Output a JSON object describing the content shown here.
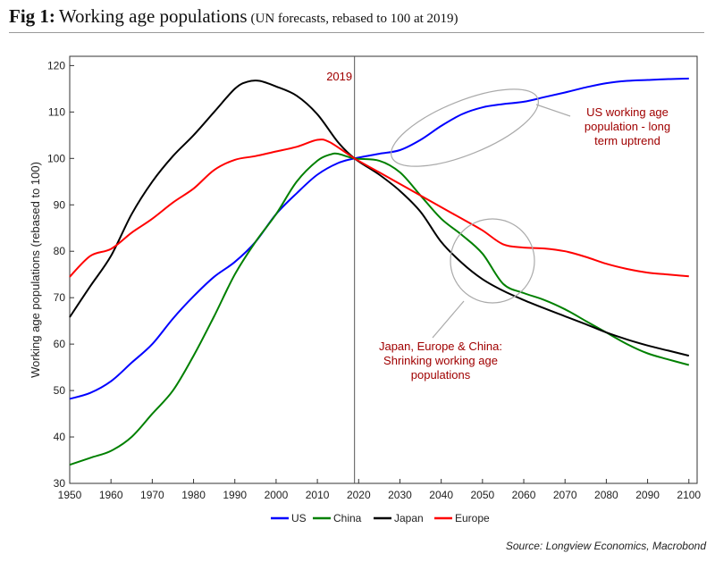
{
  "header": {
    "title_bold": "Fig 1:",
    "title_main": "Working age populations",
    "title_sub": "(UN forecasts, rebased to 100 at 2019)"
  },
  "source": "Source: Longview Economics, Macrobond",
  "chart_data": {
    "type": "line",
    "ylabel": "Working age populations (rebased to 100)",
    "xlim": [
      1950,
      2102
    ],
    "ylim": [
      30,
      122
    ],
    "x_ticks": [
      1950,
      1960,
      1970,
      1980,
      1990,
      2000,
      2010,
      2020,
      2030,
      2040,
      2050,
      2060,
      2070,
      2080,
      2090,
      2100
    ],
    "y_ticks": [
      30,
      40,
      50,
      60,
      70,
      80,
      90,
      100,
      110,
      120
    ],
    "grid": false,
    "legend_position": "bottom",
    "vline": {
      "x": 2019,
      "label": "2019"
    },
    "series": [
      {
        "name": "US",
        "color": "#0000ff",
        "x": [
          1950,
          1955,
          1960,
          1965,
          1970,
          1975,
          1980,
          1985,
          1990,
          1995,
          2000,
          2005,
          2010,
          2015,
          2019,
          2025,
          2030,
          2035,
          2040,
          2045,
          2050,
          2055,
          2060,
          2065,
          2070,
          2075,
          2080,
          2085,
          2090,
          2095,
          2100
        ],
        "values": [
          48.2,
          49.5,
          52.0,
          56.0,
          60.0,
          65.5,
          70.3,
          74.5,
          77.7,
          82.0,
          88.0,
          92.5,
          96.5,
          99.0,
          100.0,
          101.0,
          101.8,
          104.0,
          107.0,
          109.5,
          111.0,
          111.7,
          112.2,
          113.2,
          114.2,
          115.3,
          116.2,
          116.7,
          116.9,
          117.1,
          117.2
        ]
      },
      {
        "name": "China",
        "color": "#008000",
        "x": [
          1950,
          1955,
          1960,
          1965,
          1970,
          1975,
          1980,
          1985,
          1990,
          1995,
          2000,
          2005,
          2010,
          2013,
          2015,
          2019,
          2025,
          2030,
          2035,
          2040,
          2045,
          2050,
          2055,
          2060,
          2065,
          2070,
          2075,
          2080,
          2085,
          2090,
          2095,
          2100
        ],
        "values": [
          34.0,
          35.5,
          37.0,
          40.0,
          45.0,
          50.0,
          57.5,
          66.0,
          75.0,
          82.0,
          88.0,
          95.0,
          99.5,
          100.8,
          101.0,
          100.0,
          99.5,
          97.0,
          92.0,
          87.0,
          83.5,
          79.5,
          73.0,
          71.0,
          69.5,
          67.5,
          65.0,
          62.5,
          60.0,
          58.0,
          56.7,
          55.5
        ]
      },
      {
        "name": "Japan",
        "color": "#000000",
        "x": [
          1950,
          1955,
          1960,
          1965,
          1970,
          1975,
          1980,
          1985,
          1990,
          1993,
          1996,
          2000,
          2005,
          2010,
          2015,
          2019,
          2025,
          2030,
          2035,
          2040,
          2045,
          2050,
          2055,
          2060,
          2065,
          2070,
          2075,
          2080,
          2085,
          2090,
          2095,
          2100
        ],
        "values": [
          65.8,
          72.5,
          79.0,
          88.0,
          95.0,
          100.5,
          105.0,
          110.0,
          115.0,
          116.5,
          116.7,
          115.5,
          113.5,
          109.5,
          103.5,
          100.0,
          96.5,
          93.0,
          88.5,
          82.0,
          77.5,
          74.0,
          71.5,
          69.5,
          67.7,
          66.0,
          64.3,
          62.5,
          61.0,
          59.7,
          58.6,
          57.5
        ]
      },
      {
        "name": "Europe",
        "color": "#ff0000",
        "x": [
          1950,
          1955,
          1960,
          1965,
          1970,
          1975,
          1980,
          1985,
          1990,
          1995,
          2000,
          2005,
          2010,
          2013,
          2019,
          2025,
          2030,
          2035,
          2040,
          2045,
          2050,
          2055,
          2060,
          2065,
          2070,
          2075,
          2080,
          2085,
          2090,
          2095,
          2100
        ],
        "values": [
          74.5,
          79.0,
          80.5,
          84.0,
          87.0,
          90.5,
          93.5,
          97.5,
          99.7,
          100.5,
          101.5,
          102.5,
          104.0,
          103.5,
          100.0,
          97.0,
          94.5,
          92.0,
          89.5,
          87.0,
          84.5,
          81.5,
          80.8,
          80.6,
          80.0,
          78.8,
          77.3,
          76.2,
          75.4,
          75.0,
          74.6
        ]
      }
    ],
    "annotations": [
      {
        "lines": [
          "US working age",
          "population - long",
          "term uptrend"
        ]
      },
      {
        "lines": [
          "Japan, Europe & China:",
          "Shrinking working age",
          "populations"
        ]
      }
    ]
  }
}
